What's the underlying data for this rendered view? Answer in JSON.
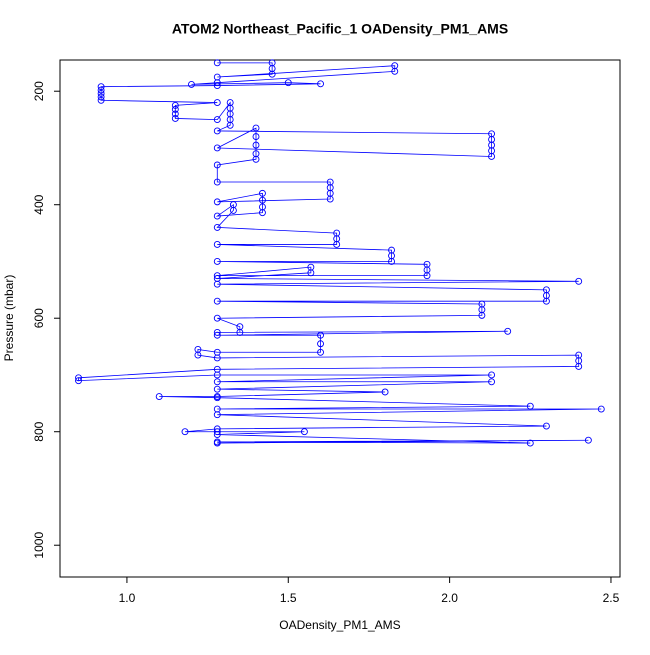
{
  "chart_data": {
    "type": "line",
    "title": "ATOM2 Northeast_Pacific_1 OADensity_PM1_AMS",
    "x_label": "OADensity_PM1_AMS",
    "y_label": "Pressure (mbar)",
    "color": "#0000ff",
    "markers": "open-circle",
    "xlim": [
      0.7926,
      2.528
    ],
    "ylim": [
      1056,
      145
    ],
    "xticks": [
      {
        "value": 1,
        "label": "1.0"
      },
      1.5,
      {
        "value": 2,
        "label": "2.0"
      },
      2.5
    ],
    "yticks": [
      200,
      400,
      600,
      800,
      1000
    ],
    "x": [
      1.28,
      1.45,
      1.45,
      1.45,
      1.28,
      1.83,
      1.83,
      1.28,
      1.2,
      1.5,
      1.6,
      1.28,
      0.92,
      0.92,
      0.92,
      0.92,
      0.92,
      1.28,
      1.15,
      1.15,
      1.15,
      1.15,
      1.28,
      1.32,
      1.32,
      1.32,
      1.32,
      1.32,
      1.28,
      2.13,
      2.13,
      2.13,
      2.13,
      2.13,
      1.28,
      1.4,
      1.4,
      1.4,
      1.4,
      1.4,
      1.28,
      1.28,
      1.63,
      1.63,
      1.63,
      1.63,
      1.28,
      1.42,
      1.42,
      1.42,
      1.42,
      1.28,
      1.33,
      1.33,
      1.28,
      1.65,
      1.65,
      1.65,
      1.28,
      1.82,
      1.82,
      1.82,
      1.28,
      1.93,
      1.93,
      1.93,
      1.28,
      1.57,
      1.57,
      1.28,
      2.4,
      1.28,
      2.3,
      2.3,
      2.3,
      1.28,
      2.1,
      2.1,
      2.1,
      1.28,
      1.35,
      1.35,
      1.28,
      2.18,
      1.28,
      1.6,
      1.6,
      1.6,
      1.28,
      1.22,
      1.22,
      1.28,
      2.4,
      2.4,
      2.4,
      1.28,
      0.85,
      0.85,
      1.28,
      2.13,
      1.28,
      2.13,
      1.28,
      1.8,
      1.28,
      1.1,
      1.28,
      2.25,
      1.28,
      2.47,
      1.28,
      2.3,
      1.28,
      1.18,
      1.28,
      1.55,
      1.28,
      2.25,
      1.28,
      2.43,
      1.28
    ],
    "values": [
      150,
      150,
      160,
      170,
      175,
      155,
      165,
      185,
      188,
      185,
      187,
      190,
      192,
      198,
      204,
      210,
      216,
      220,
      225,
      232,
      240,
      248,
      250,
      220,
      230,
      240,
      250,
      260,
      270,
      275,
      285,
      295,
      305,
      315,
      300,
      265,
      280,
      295,
      310,
      320,
      330,
      360,
      360,
      370,
      380,
      390,
      395,
      380,
      392,
      404,
      414,
      420,
      400,
      410,
      440,
      450,
      460,
      470,
      470,
      480,
      490,
      500,
      500,
      505,
      515,
      525,
      525,
      510,
      520,
      530,
      535,
      540,
      550,
      560,
      570,
      570,
      575,
      585,
      595,
      600,
      615,
      625,
      625,
      623,
      630,
      630,
      645,
      660,
      660,
      655,
      665,
      670,
      665,
      675,
      685,
      690,
      705,
      710,
      700,
      700,
      712,
      712,
      725,
      730,
      738,
      738,
      740,
      755,
      760,
      760,
      770,
      790,
      795,
      800,
      800,
      800,
      805,
      820,
      818,
      815,
      820
    ]
  }
}
